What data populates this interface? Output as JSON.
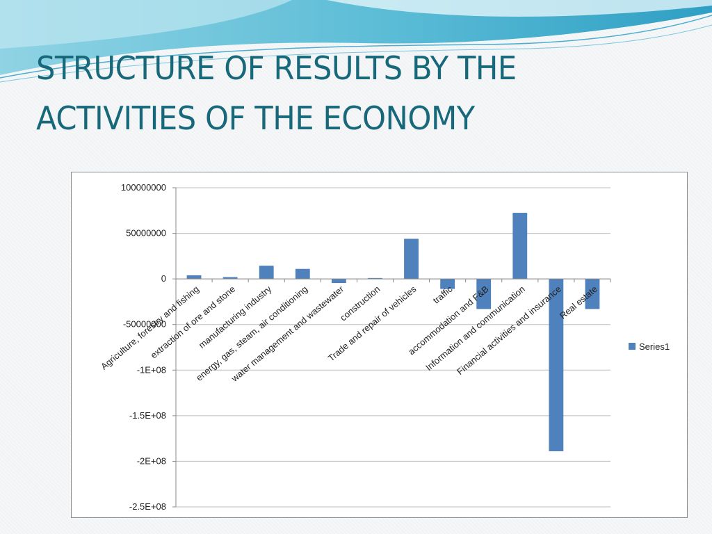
{
  "slide": {
    "title_line1": "STRUCTURE OF RESULTS BY THE",
    "title_line2": "ACTIVITIES OF THE ECONOMY"
  },
  "colors": {
    "title": "#17687a",
    "bar": "#4f81bd",
    "grid": "#bdbdbd"
  },
  "chart_data": {
    "type": "bar",
    "categories": [
      "Agriculture, forestry and fishing",
      "extraction of ore and stone",
      "manufacturing industry",
      "energy, gas, steam, air conditioning",
      "water management and wastewater",
      "construction",
      "Trade and repair of vehicles",
      "traffic",
      "accommodation and F&B",
      "Information and communication",
      "Financial activities and insurance",
      "Real estate"
    ],
    "series": [
      {
        "name": "Series1",
        "values": [
          4000000,
          2000000,
          14500000,
          11000000,
          -4500000,
          1000000,
          44000000,
          -11000000,
          -33000000,
          72500000,
          -189000000,
          -33000000
        ]
      }
    ],
    "yticks": [
      "100000000",
      "50000000",
      "0",
      "-50000000",
      "-1E+08",
      "-1.5E+08",
      "-2E+08",
      "-2.5E+08"
    ],
    "ylim": [
      -250000000,
      100000000
    ],
    "grid": true,
    "legend_position": "right"
  }
}
